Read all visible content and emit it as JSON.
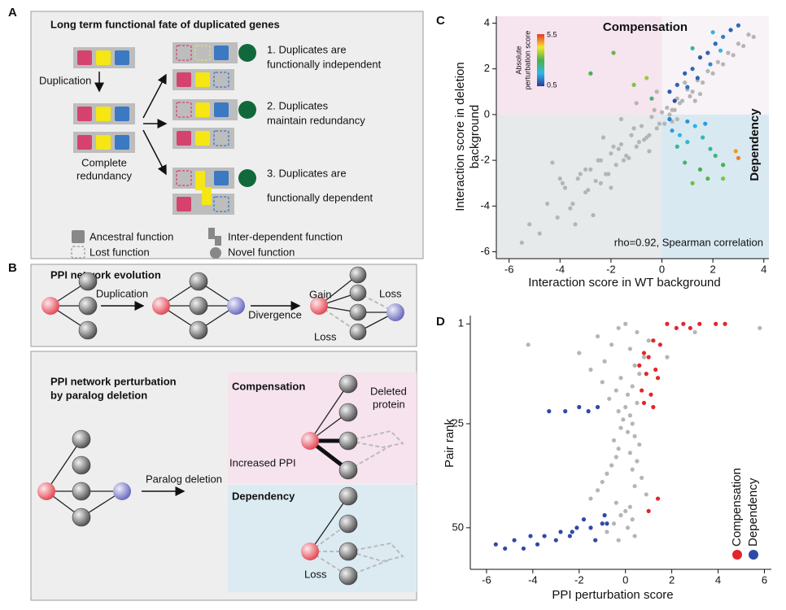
{
  "panel_labels": [
    "A",
    "B",
    "C",
    "D"
  ],
  "panel_a": {
    "title": "Long term functional fate of duplicated genes",
    "duplication": "Duplication",
    "redundancy": [
      "Complete",
      "redundancy"
    ],
    "outcomes": [
      [
        "1. Duplicates are",
        "functionally independent"
      ],
      [
        "2. Duplicates",
        "maintain redundancy"
      ],
      [
        "3. Duplicates are",
        "functionally dependent"
      ]
    ],
    "legend": [
      "Ancestral function",
      "Lost function",
      "Inter-dependent function",
      "Novel function"
    ]
  },
  "panel_b": {
    "evolution": {
      "title": "PPI network evolution",
      "steps": [
        "Duplication",
        "Divergence"
      ],
      "labels": [
        "Gain",
        "Loss",
        "Loss"
      ]
    },
    "perturbation": {
      "title": [
        "PPI network perturbation",
        "by paralog deletion"
      ],
      "step": "Paralog deletion",
      "compensation": {
        "title": "Compensation",
        "deleted": [
          "Deleted",
          "protein"
        ],
        "increased": "Increased PPI"
      },
      "dependency": {
        "title": "Dependency",
        "loss": "Loss"
      }
    }
  },
  "chart_data": [
    {
      "type": "scatter",
      "x_label": "Interaction score in WT background",
      "y_label": [
        "Interaction score in deletion",
        "background"
      ],
      "annotations": [
        "Compensation",
        "Dependency",
        "rho=0.92, Spearman correlation"
      ],
      "xlim": [
        -6.5,
        4.2
      ],
      "ylim": [
        -6.3,
        4.3
      ],
      "xticks": [
        -6,
        -4,
        -2,
        0,
        2,
        4
      ],
      "yticks": [
        -6,
        -4,
        -2,
        0,
        2,
        4
      ],
      "regions": {
        "compensation": "#f6e4ef",
        "dependency": "#d9e9f2",
        "other_low": "#e6eaea",
        "other_high": "#f7f3f6"
      },
      "colormap": [
        "#2b3a9b",
        "#2fb7e8",
        "#47b34a",
        "#f2e82a",
        "#e8372b"
      ],
      "colorbar": {
        "title": [
          "Absolute",
          "perturbation score"
        ],
        "range": [
          0.5,
          5.5
        ]
      },
      "series": [
        {
          "color": "#b5b5b5",
          "x": [
            -5.2,
            -4.8,
            -4.5,
            -4.1,
            -3.8,
            -3.5,
            -3.3,
            -3.0,
            -2.8,
            -2.6,
            -2.4,
            -2.2,
            -2.0,
            -1.8,
            -1.6,
            -1.4,
            -1.2,
            -1.0,
            -0.8,
            -0.6,
            -0.4,
            -0.2,
            0,
            0.2,
            0.4,
            0.6,
            0.8,
            1.0,
            1.2,
            1.4,
            1.6,
            1.8,
            2.0,
            2.2,
            2.4,
            2.6,
            2.8,
            3.0,
            3.2,
            3.4,
            3.6,
            -3.2,
            -2.9,
            -2.5,
            -2.1,
            -1.7,
            -1.3,
            -0.9,
            -0.5,
            -0.1,
            0.3,
            0.7,
            1.1,
            -4.0,
            -3.6,
            -3.0,
            -2.4,
            -1.9,
            -1.5,
            -1.1,
            -0.7,
            -0.3,
            0.1,
            0.5,
            -2.0,
            -1.0,
            -0.5,
            0.4,
            0.9,
            1.5,
            -5.5,
            -3.9,
            -2.7,
            -1.6,
            -4.3,
            -0.2,
            0.6,
            1.3,
            -3.4,
            -2.3
          ],
          "values": [
            -4.8,
            -5.2,
            -3.9,
            -4.5,
            -3.2,
            -3.9,
            -2.8,
            -3.4,
            -2.4,
            -2.9,
            -2.0,
            -2.6,
            -1.7,
            -2.2,
            -1.3,
            -1.8,
            -0.9,
            -1.4,
            -0.5,
            -1.0,
            -0.1,
            -0.6,
            0.1,
            0.3,
            0.2,
            0.7,
            0.6,
            1.1,
            1.0,
            1.5,
            1.4,
            1.9,
            1.8,
            2.3,
            2.2,
            2.7,
            2.6,
            3.1,
            3.0,
            3.5,
            3.4,
            -2.6,
            -3.3,
            -2.0,
            -2.6,
            -1.5,
            -1.9,
            -1.2,
            -0.9,
            -0.4,
            0.0,
            0.5,
            0.8,
            -2.8,
            -4.1,
            -2.4,
            -3.0,
            -1.4,
            -2.0,
            -0.6,
            -1.1,
            0.2,
            -0.4,
            0.2,
            -3.2,
            0.5,
            -1.6,
            -0.3,
            1.4,
            0.9,
            -5.6,
            -3.0,
            -4.4,
            -0.2,
            -2.1,
            1.0,
            -0.2,
            0.6,
            -4.8,
            -1.0
          ]
        },
        {
          "x": [
            0.3,
            0.6,
            0.9,
            1.2,
            1.5,
            1.8,
            2.1,
            2.4,
            2.7,
            3.0,
            0.5,
            1.0,
            1.4,
            1.9,
            2.3,
            -1.9,
            -2.8,
            -1.1,
            -0.4,
            -0.6,
            2.0,
            1.2,
            0.4,
            0.7,
            1.0,
            1.3,
            1.6,
            1.9,
            0.9,
            1.5,
            2.1,
            0.6,
            1.2,
            1.8,
            2.4,
            0.3,
            1.0,
            1.7,
            2.9,
            3.0,
            2.4
          ],
          "values": [
            1.0,
            1.3,
            1.8,
            2.0,
            2.5,
            2.7,
            3.1,
            3.4,
            3.7,
            3.9,
            0.6,
            1.2,
            1.6,
            2.2,
            2.8,
            2.7,
            1.8,
            1.3,
            0.7,
            1.6,
            3.6,
            2.9,
            -0.7,
            -0.9,
            -1.2,
            -0.5,
            -1.0,
            -1.5,
            -2.1,
            -2.4,
            -1.8,
            -1.4,
            -3.0,
            -2.8,
            -2.2,
            -0.2,
            -0.3,
            -0.4,
            -1.6,
            -1.9,
            -2.8
          ],
          "color_values": [
            0.8,
            0.9,
            0.9,
            1.0,
            0.8,
            0.9,
            1.0,
            1.2,
            0.9,
            1.0,
            0.7,
            1.1,
            0.9,
            1.3,
            1.8,
            3.2,
            3.0,
            3.4,
            2.6,
            3.6,
            1.9,
            2.3,
            1.5,
            1.8,
            2.0,
            1.7,
            2.1,
            2.4,
            2.7,
            3.0,
            2.6,
            2.3,
            3.3,
            3.1,
            3.0,
            1.2,
            1.4,
            1.5,
            4.8,
            5.0,
            3.4
          ]
        }
      ]
    },
    {
      "type": "scatter",
      "x_label": "PPI perturbation score",
      "y_label": "Pair rank",
      "xlim": [
        -6.7,
        6.3
      ],
      "ylim": [
        -1,
        60
      ],
      "y_inverted": true,
      "xticks": [
        -6,
        -4,
        -2,
        0,
        2,
        4,
        6
      ],
      "yticks": [
        1,
        25,
        50
      ],
      "legend": "lower right",
      "series": [
        {
          "color": "#b5b5b5",
          "x": [
            0,
            -0.3,
            0.5,
            -1.2,
            1.0,
            -0.6,
            0.2,
            -2.0,
            0.8,
            -0.9,
            0.4,
            -1.5,
            0.6,
            -0.2,
            -1.0,
            0.3,
            -0.4,
            0.1,
            -0.7,
            0.5,
            0,
            -0.3,
            0.2,
            -0.1,
            0.3,
            -0.2,
            0.1,
            0.4,
            -0.5,
            0.6,
            -0.3,
            0.2,
            -0.4,
            0.5,
            -0.6,
            0.3,
            -0.8,
            0.7,
            -1.0,
            0.4,
            -1.2,
            0.9,
            -1.5,
            -0.4,
            0.2,
            0,
            -0.2,
            0.3,
            -0.5,
            0.1,
            -0.8,
            0.4,
            -0.3,
            5.8,
            -4.2,
            3.0,
            1.8
          ],
          "values": [
            1,
            2,
            3,
            4,
            5,
            6,
            7,
            8,
            9,
            10,
            11,
            12,
            13,
            14,
            15,
            16,
            17,
            18,
            19,
            20,
            21,
            22,
            23,
            24,
            25,
            26,
            27,
            28,
            29,
            30,
            31,
            32,
            33,
            34,
            35,
            36,
            37,
            38,
            39,
            40,
            41,
            42,
            43,
            44,
            45,
            46,
            47,
            48,
            49,
            50,
            51,
            52,
            53,
            2,
            6,
            3,
            9
          ]
        },
        {
          "name": "Compensation",
          "color": "#e3262b",
          "x": [
            1.8,
            2.5,
            3.2,
            3.9,
            4.3,
            2.2,
            1.2,
            1.5,
            0.8,
            1.0,
            0.6,
            1.3,
            0.9,
            1.4,
            0.7,
            1.1,
            0.8,
            1.2,
            1.4,
            2.8,
            1.0
          ],
          "values": [
            1,
            1,
            1,
            1,
            1,
            2,
            5,
            6,
            8,
            9,
            11,
            12,
            13,
            14,
            17,
            18,
            20,
            21,
            43,
            2,
            46
          ]
        },
        {
          "name": "Dependency",
          "color": "#2e4aa8",
          "x": [
            -1.2,
            -2.0,
            -2.6,
            -3.3,
            -1.6,
            -0.8,
            -1.0,
            -1.5,
            -2.1,
            -2.8,
            -3.5,
            -4.1,
            -4.8,
            -5.6,
            -2.3,
            -3.0,
            -3.8,
            -1.8,
            -2.4,
            -4.4,
            -5.2,
            -0.9,
            -1.3
          ],
          "values": [
            21,
            21,
            22,
            22,
            22,
            49,
            49,
            50,
            50,
            51,
            52,
            52,
            53,
            54,
            51,
            53,
            54,
            48,
            52,
            55,
            55,
            47,
            53
          ]
        }
      ]
    }
  ]
}
